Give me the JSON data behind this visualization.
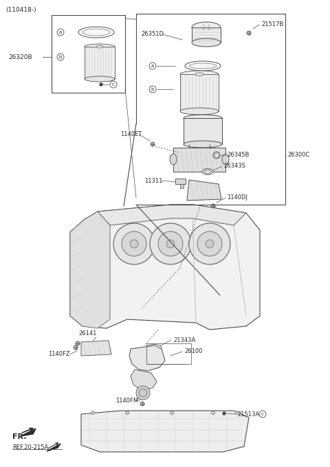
{
  "bg_color": "#ffffff",
  "lc": "#4a4a4a",
  "tc": "#2a2a2a",
  "fig_width": 4.8,
  "fig_height": 6.8,
  "dpi": 100,
  "labels": {
    "title": "(110418-)",
    "26320B": "26320B",
    "26351D": "26351D",
    "21517B": "21517B",
    "1140ET": "1140ET",
    "26345B": "26345B",
    "26300C": "26300C",
    "26343S": "26343S",
    "11311": "11311",
    "1140DJ": "1140DJ",
    "26141": "26141",
    "21343A": "21343A",
    "26100": "26100",
    "1140FZ": "1140FZ",
    "1140FM": "1140FM",
    "21513A": "21513A",
    "FR": "FR.",
    "REF": "REF.20-215A"
  }
}
